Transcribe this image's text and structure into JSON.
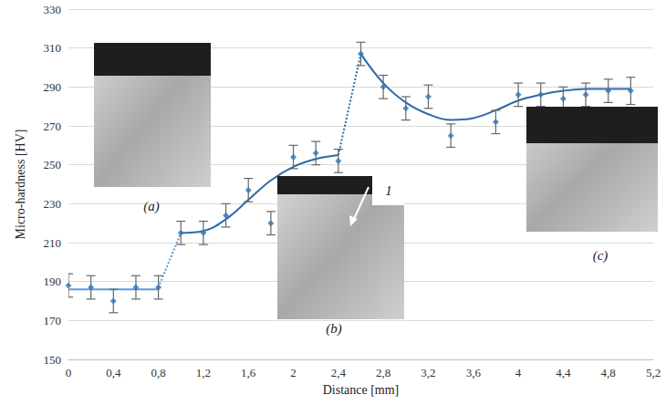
{
  "chart_data": {
    "type": "scatter",
    "x_label": "Distance [mm]",
    "y_label": "Micro-hardness [HV]",
    "x": [
      0,
      0.2,
      0.4,
      0.6,
      0.8,
      1.0,
      1.2,
      1.4,
      1.6,
      1.8,
      2.0,
      2.2,
      2.4,
      2.6,
      2.8,
      3.0,
      3.2,
      3.4,
      3.8,
      4.0,
      4.2,
      4.4,
      4.6,
      4.8,
      5.0
    ],
    "values": [
      188,
      187,
      180,
      187,
      187,
      215,
      215,
      224,
      237,
      220,
      254,
      256,
      252,
      307,
      290,
      279,
      285,
      265,
      272,
      286,
      286,
      284,
      286,
      288,
      288
    ],
    "errors": [
      6,
      6,
      6,
      6,
      6,
      6,
      6,
      6,
      6,
      6,
      6,
      6,
      6,
      6,
      6,
      6,
      6,
      6,
      6,
      6,
      6,
      6,
      6,
      6,
      7
    ],
    "color": "#2e75b6",
    "marker": "diamond",
    "trend_lines": [
      {
        "x": [
          0,
          0.8
        ],
        "values": [
          186,
          186
        ],
        "color": "#5b9bd5",
        "line_style": "solid"
      },
      {
        "x": [
          0.8,
          1.0
        ],
        "values": [
          187,
          215
        ],
        "color": "#5b9bd5",
        "line_style": "dotted"
      },
      {
        "x": [
          1.0,
          1.2,
          1.4,
          1.6,
          1.8,
          2.0,
          2.2,
          2.4
        ],
        "values": [
          215,
          216,
          222,
          232,
          242,
          249,
          253,
          255
        ],
        "color": "#2e6aa8",
        "line_style": "solid"
      },
      {
        "x": [
          2.4,
          2.6
        ],
        "values": [
          255,
          307
        ],
        "color": "#2e6aa8",
        "line_style": "dotted"
      },
      {
        "x": [
          2.6,
          2.8,
          3.0,
          3.2,
          3.4,
          3.6,
          3.8,
          4.0,
          4.2,
          4.4,
          4.6,
          4.8,
          5.0
        ],
        "values": [
          307,
          292,
          282,
          276,
          273,
          274,
          278,
          283,
          286,
          288,
          289,
          289,
          289
        ],
        "color": "#2e6aa8",
        "line_style": "solid"
      }
    ],
    "annotations": [
      "(a)",
      "(b)",
      "(c)",
      "1"
    ],
    "xlim": [
      0,
      5.2
    ],
    "xticks": [
      0,
      {
        "value": 0.4,
        "label": "0,4"
      },
      {
        "value": 0.8,
        "label": "0,8"
      },
      {
        "value": 1.2,
        "label": "1,2"
      },
      {
        "value": 1.6,
        "label": "1,6"
      },
      2,
      {
        "value": 2.4,
        "label": "2,4"
      },
      {
        "value": 2.8,
        "label": "2,8"
      },
      {
        "value": 3.2,
        "label": "3,2"
      },
      {
        "value": 3.6,
        "label": "3,6"
      },
      4,
      {
        "value": 4.4,
        "label": "4,4"
      },
      {
        "value": 4.8,
        "label": "4,8"
      },
      {
        "value": 5.2,
        "label": "5,2"
      }
    ],
    "ylim": [
      150,
      330
    ],
    "yticks": [
      150,
      170,
      190,
      210,
      230,
      250,
      270,
      290,
      310,
      330
    ],
    "grid": true
  }
}
